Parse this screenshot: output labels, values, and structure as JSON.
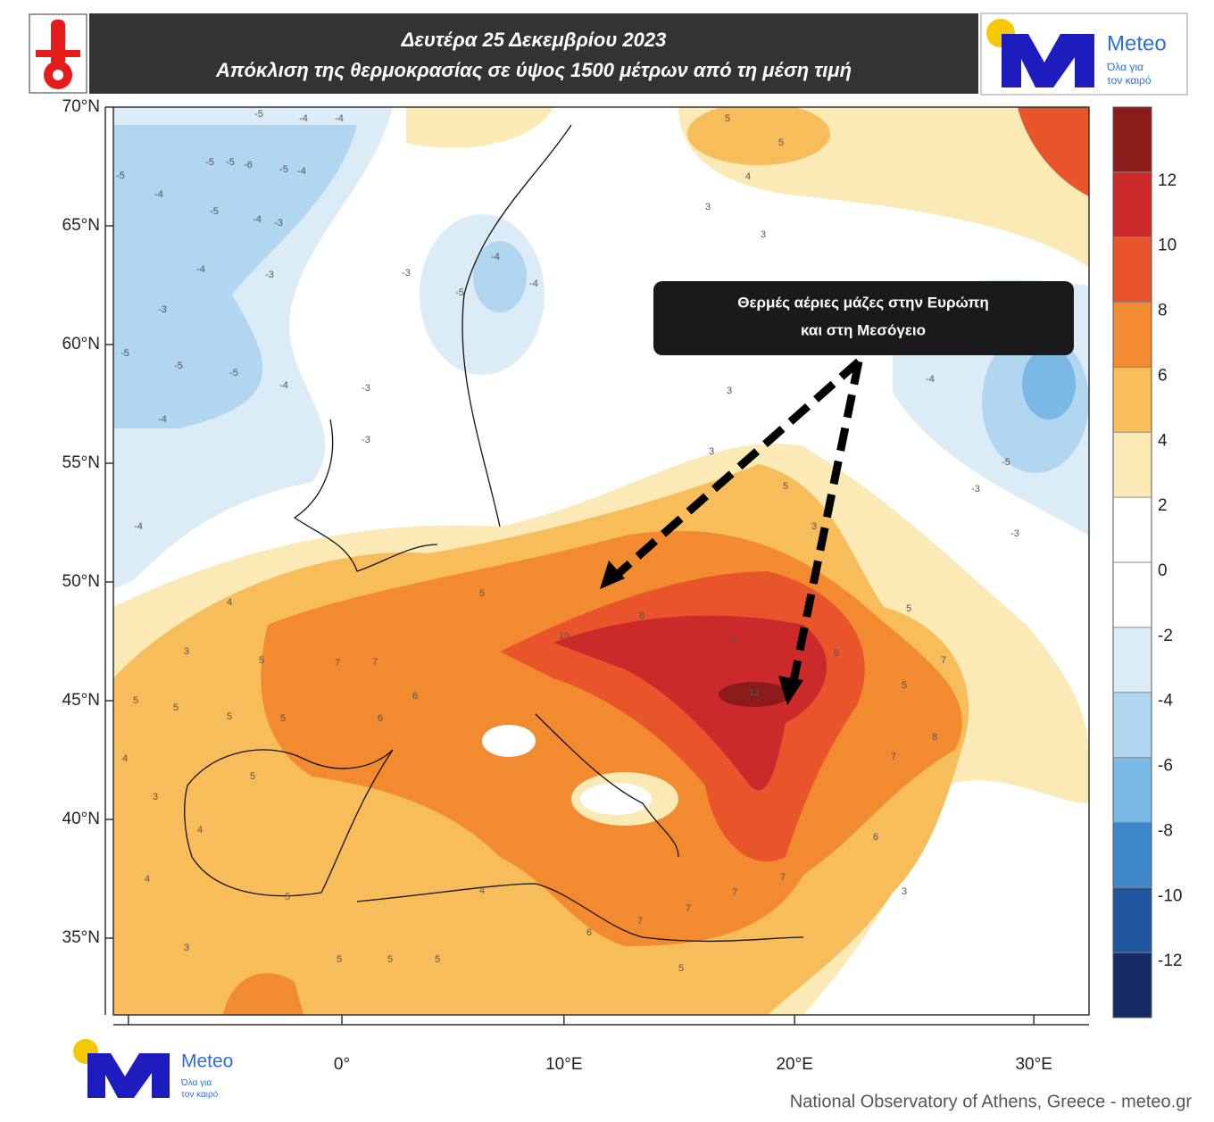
{
  "header": {
    "title": "Δευτέρα 25 Δεκεμβρίου 2023",
    "subtitle": "Απόκλιση της θερμοκρασίας σε ύψος 1500 μέτρων από τη μέση τιμή"
  },
  "logo": {
    "name": "Meteo",
    "tagline": [
      "Όλα για",
      "τον καιρό"
    ]
  },
  "map": {
    "annotation": [
      "Θερμές αέριες μάζες στην Ευρώπη",
      "και στη Μεσόγειο"
    ],
    "lat_ticks": [
      {
        "value": 70,
        "label": "70°N"
      },
      {
        "value": 65,
        "label": "65°N"
      },
      {
        "value": 60,
        "label": "60°N"
      },
      {
        "value": 55,
        "label": "55°N"
      },
      {
        "value": 50,
        "label": "50°N"
      },
      {
        "value": 45,
        "label": "45°N"
      },
      {
        "value": 40,
        "label": "40°N"
      },
      {
        "value": 35,
        "label": "35°N"
      }
    ],
    "lon_ticks": [
      {
        "value": -10,
        "label": null
      },
      {
        "value": 0,
        "label": "0°"
      },
      {
        "value": 10,
        "label": "10°E"
      },
      {
        "value": 20,
        "label": "20°E"
      },
      {
        "value": 30,
        "label": "30°E"
      }
    ],
    "contour_labels": [
      -5,
      -4,
      -4,
      -5,
      -5,
      -6,
      -5,
      -4,
      -5,
      -4,
      -5,
      -4,
      -3,
      -4,
      -3,
      -3,
      -5,
      -5,
      -5,
      -4,
      -3,
      -4,
      -3,
      -4,
      -4,
      -4,
      -3,
      -5,
      5,
      5,
      4,
      3,
      3,
      3,
      3,
      5,
      3,
      -4,
      -5,
      -3,
      -3,
      4,
      3,
      5,
      5,
      5,
      5,
      5,
      7,
      7,
      6,
      6,
      5,
      10,
      8,
      9,
      12,
      9,
      7,
      5,
      8,
      7,
      5,
      6,
      3,
      7,
      7,
      7,
      7,
      6,
      5,
      5,
      5,
      5,
      4,
      5,
      3,
      4,
      4,
      3,
      4,
      5,
      3
    ]
  },
  "colorbar": {
    "ticks": [
      12,
      10,
      8,
      6,
      4,
      2,
      0,
      -2,
      -4,
      -6,
      -8,
      -10,
      -12
    ],
    "bins": [
      {
        "from": 12,
        "to": 14,
        "color": "#8b1a1a"
      },
      {
        "from": 10,
        "to": 12,
        "color": "#cc2a2a"
      },
      {
        "from": 8,
        "to": 10,
        "color": "#e8552a"
      },
      {
        "from": 6,
        "to": 8,
        "color": "#f28a30"
      },
      {
        "from": 4,
        "to": 6,
        "color": "#f7bd5a"
      },
      {
        "from": 2,
        "to": 4,
        "color": "#fbeab5"
      },
      {
        "from": 0,
        "to": 2,
        "color": "#ffffff"
      },
      {
        "from": -2,
        "to": 0,
        "color": "#ffffff"
      },
      {
        "from": -4,
        "to": -2,
        "color": "#dcecf7"
      },
      {
        "from": -6,
        "to": -4,
        "color": "#b0d6f0"
      },
      {
        "from": -8,
        "to": -6,
        "color": "#7ab8e6"
      },
      {
        "from": -10,
        "to": -8,
        "color": "#3f87cb"
      },
      {
        "from": -12,
        "to": -10,
        "color": "#1f569f"
      },
      {
        "from": -14,
        "to": -12,
        "color": "#162b64"
      }
    ]
  },
  "credit": "National Observatory of Athens, Greece - meteo.gr"
}
